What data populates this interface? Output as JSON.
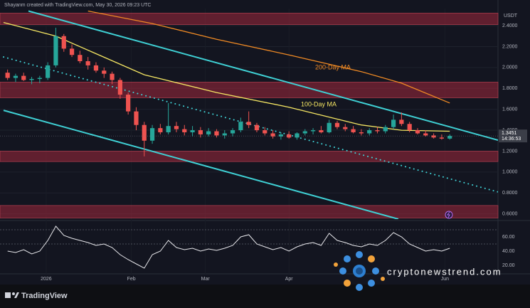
{
  "header": "Shayanm created with TradingView.com, May 30, 2026 09:23 UTC",
  "brand": "TradingView",
  "watermark": "cryptonewstrend.com",
  "chart_data": {
    "type": "candlestick",
    "currency": "USDT",
    "current_price": {
      "value": 1.3451,
      "label": "1.3451"
    },
    "countdown": "14:36:53",
    "ylim": [
      0.55,
      2.55
    ],
    "yticks": [
      {
        "value": 2.4,
        "label": "2.4000"
      },
      {
        "value": 2.2,
        "label": "2.2000"
      },
      {
        "value": 2.0,
        "label": "2.0000"
      },
      {
        "value": 1.8,
        "label": "1.8000"
      },
      {
        "value": 1.6,
        "label": "1.6000"
      },
      {
        "value": 1.4,
        "label": "1.4000"
      },
      {
        "value": 1.2,
        "label": "1.2000"
      },
      {
        "value": 1.0,
        "label": "1.0000"
      },
      {
        "value": 0.8,
        "label": "0.8000"
      },
      {
        "value": 0.6,
        "label": "0.6000"
      }
    ],
    "xlim": [
      -0.5,
      61
    ],
    "xticks": [
      {
        "value": 4.8,
        "label": "2026"
      },
      {
        "value": 15.4,
        "label": "Feb"
      },
      {
        "value": 24.6,
        "label": "Mar"
      },
      {
        "value": 35,
        "label": "Apr"
      },
      {
        "value": 54.4,
        "label": "Jun"
      }
    ],
    "up_color": "#26a69a",
    "down_color": "#ef5350",
    "candles": [
      [
        1.95,
        1.98,
        1.88,
        1.9
      ],
      [
        1.9,
        1.94,
        1.86,
        1.92
      ],
      [
        1.92,
        1.95,
        1.87,
        1.88
      ],
      [
        1.88,
        1.91,
        1.84,
        1.89
      ],
      [
        1.89,
        1.92,
        1.85,
        1.9
      ],
      [
        1.9,
        2.05,
        1.88,
        2.02
      ],
      [
        2.02,
        2.38,
        2.0,
        2.3
      ],
      [
        2.3,
        2.32,
        2.15,
        2.18
      ],
      [
        2.18,
        2.22,
        2.1,
        2.12
      ],
      [
        2.12,
        2.16,
        2.04,
        2.06
      ],
      [
        2.06,
        2.1,
        1.98,
        2.02
      ],
      [
        2.02,
        2.05,
        1.95,
        1.97
      ],
      [
        1.97,
        2.0,
        1.9,
        1.94
      ],
      [
        1.94,
        1.96,
        1.84,
        1.88
      ],
      [
        1.88,
        1.9,
        1.7,
        1.74
      ],
      [
        1.74,
        1.76,
        1.55,
        1.58
      ],
      [
        1.58,
        1.62,
        1.4,
        1.45
      ],
      [
        1.45,
        1.48,
        1.15,
        1.3
      ],
      [
        1.3,
        1.45,
        1.27,
        1.42
      ],
      [
        1.42,
        1.46,
        1.36,
        1.38
      ],
      [
        1.38,
        1.66,
        1.36,
        1.44
      ],
      [
        1.44,
        1.48,
        1.38,
        1.41
      ],
      [
        1.41,
        1.45,
        1.35,
        1.38
      ],
      [
        1.38,
        1.44,
        1.34,
        1.4
      ],
      [
        1.4,
        1.43,
        1.33,
        1.36
      ],
      [
        1.36,
        1.42,
        1.34,
        1.39
      ],
      [
        1.39,
        1.41,
        1.33,
        1.35
      ],
      [
        1.35,
        1.4,
        1.32,
        1.37
      ],
      [
        1.37,
        1.42,
        1.34,
        1.4
      ],
      [
        1.4,
        1.52,
        1.38,
        1.48
      ],
      [
        1.48,
        1.58,
        1.42,
        1.45
      ],
      [
        1.45,
        1.47,
        1.38,
        1.4
      ],
      [
        1.4,
        1.43,
        1.35,
        1.37
      ],
      [
        1.37,
        1.4,
        1.32,
        1.34
      ],
      [
        1.34,
        1.38,
        1.31,
        1.36
      ],
      [
        1.36,
        1.39,
        1.32,
        1.33
      ],
      [
        1.33,
        1.38,
        1.31,
        1.37
      ],
      [
        1.37,
        1.41,
        1.35,
        1.39
      ],
      [
        1.39,
        1.42,
        1.36,
        1.4
      ],
      [
        1.4,
        1.44,
        1.37,
        1.38
      ],
      [
        1.38,
        1.5,
        1.37,
        1.47
      ],
      [
        1.47,
        1.49,
        1.41,
        1.43
      ],
      [
        1.43,
        1.46,
        1.39,
        1.41
      ],
      [
        1.41,
        1.44,
        1.37,
        1.38
      ],
      [
        1.38,
        1.41,
        1.35,
        1.37
      ],
      [
        1.37,
        1.42,
        1.35,
        1.4
      ],
      [
        1.4,
        1.43,
        1.37,
        1.39
      ],
      [
        1.39,
        1.45,
        1.37,
        1.43
      ],
      [
        1.43,
        1.55,
        1.41,
        1.5
      ],
      [
        1.5,
        1.57,
        1.44,
        1.46
      ],
      [
        1.46,
        1.48,
        1.38,
        1.4
      ],
      [
        1.4,
        1.42,
        1.36,
        1.37
      ],
      [
        1.37,
        1.4,
        1.34,
        1.35
      ],
      [
        1.35,
        1.37,
        1.32,
        1.33
      ],
      [
        1.33,
        1.36,
        1.31,
        1.32
      ],
      [
        1.32,
        1.36,
        1.31,
        1.3451
      ]
    ],
    "moving_averages": [
      {
        "name": "100-Day MA",
        "color": "#f5e663",
        "x": [
          -0.5,
          6,
          17,
          26,
          35,
          44,
          49,
          55
        ],
        "values": [
          2.43,
          2.3,
          1.93,
          1.76,
          1.62,
          1.45,
          1.4,
          1.39
        ]
      },
      {
        "name": "200-Day MA",
        "color": "#f08a24",
        "x": [
          10,
          18,
          26,
          35,
          44,
          49,
          55
        ],
        "values": [
          2.54,
          2.42,
          2.27,
          2.12,
          1.96,
          1.85,
          1.66
        ]
      }
    ],
    "zones": [
      [
        2.41,
        2.52
      ],
      [
        1.71,
        1.86
      ],
      [
        1.1,
        1.2
      ],
      [
        0.56,
        0.68
      ]
    ],
    "trendlines": [
      {
        "color": "#3fd0d4",
        "style": "solid",
        "x": [
          2.6,
          61
        ],
        "values": [
          2.54,
          1.305
        ]
      },
      {
        "color": "#3fd0d4",
        "style": "solid",
        "x": [
          -0.5,
          48.6
        ],
        "values": [
          1.59,
          0.55
        ]
      },
      {
        "color": "#3fd0d4",
        "style": "dotted",
        "x": [
          -0.5,
          61
        ],
        "values": [
          2.1,
          0.81
        ]
      }
    ],
    "rsi": {
      "color": "#e8e8ec",
      "ylim": [
        15,
        80
      ],
      "bands": [
        70,
        50
      ],
      "yticks": [
        {
          "value": 60,
          "label": "60.00"
        },
        {
          "value": 40,
          "label": "40.00"
        },
        {
          "value": 20,
          "label": "20.00"
        }
      ],
      "values": [
        40,
        38,
        42,
        36,
        40,
        55,
        75,
        62,
        58,
        55,
        52,
        48,
        50,
        45,
        35,
        28,
        22,
        16,
        35,
        40,
        55,
        45,
        42,
        44,
        40,
        43,
        41,
        44,
        48,
        60,
        63,
        50,
        46,
        42,
        45,
        40,
        46,
        50,
        52,
        48,
        65,
        55,
        52,
        48,
        46,
        50,
        48,
        55,
        66,
        60,
        50,
        45,
        40,
        42,
        40,
        44
      ]
    }
  }
}
